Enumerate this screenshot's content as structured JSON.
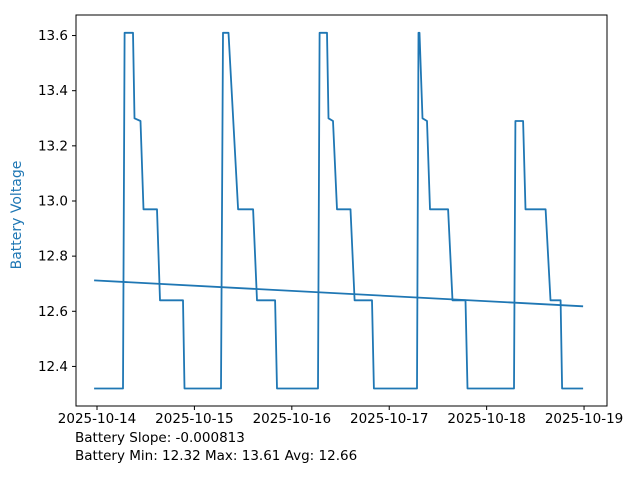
{
  "figure": {
    "background": "#ffffff"
  },
  "footer": {
    "line1": "Battery Slope: -0.000813",
    "line2": "Battery Min: 12.32 Max: 13.61 Avg: 12.66"
  },
  "chart_data": {
    "type": "line",
    "title": "",
    "xlabel": "",
    "ylabel": "Battery Voltage",
    "ylabel_color": "#1f77b4",
    "line_color": "#1f77b4",
    "axis_color": "#000000",
    "grid": false,
    "legend": "none",
    "x_unit": "days since 2025-10-14",
    "xlim": [
      -0.2156,
      5.2356
    ],
    "ylim": [
      12.2565,
      13.6745
    ],
    "x_ticks": [
      {
        "t": 0,
        "label": "2025-10-14"
      },
      {
        "t": 1,
        "label": "2025-10-15"
      },
      {
        "t": 2,
        "label": "2025-10-16"
      },
      {
        "t": 3,
        "label": "2025-10-17"
      },
      {
        "t": 4,
        "label": "2025-10-18"
      },
      {
        "t": 5,
        "label": "2025-10-19"
      }
    ],
    "y_ticks": [
      {
        "v": 12.4,
        "label": "12.4"
      },
      {
        "v": 12.6,
        "label": "12.6"
      },
      {
        "v": 12.8,
        "label": "12.8"
      },
      {
        "v": 13.0,
        "label": "13.0"
      },
      {
        "v": 13.2,
        "label": "13.2"
      },
      {
        "v": 13.4,
        "label": "13.4"
      },
      {
        "v": 13.6,
        "label": "13.6"
      }
    ],
    "stats": {
      "slope": -0.000813,
      "min": 12.32,
      "max": 13.61,
      "avg": 12.66
    },
    "series": [
      {
        "name": "battery-voltage",
        "points": [
          [
            -0.03,
            12.32
          ],
          [
            0.267,
            12.32
          ],
          [
            0.283,
            13.61
          ],
          [
            0.37,
            13.61
          ],
          [
            0.385,
            13.3
          ],
          [
            0.447,
            13.29
          ],
          [
            0.477,
            12.97
          ],
          [
            0.616,
            12.97
          ],
          [
            0.647,
            12.64
          ],
          [
            0.883,
            12.64
          ],
          [
            0.898,
            12.32
          ],
          [
            1.273,
            12.32
          ],
          [
            1.294,
            13.61
          ],
          [
            1.35,
            13.61
          ],
          [
            1.448,
            12.97
          ],
          [
            1.602,
            12.97
          ],
          [
            1.643,
            12.64
          ],
          [
            1.828,
            12.64
          ],
          [
            1.848,
            12.32
          ],
          [
            2.269,
            12.32
          ],
          [
            2.285,
            13.61
          ],
          [
            2.361,
            13.61
          ],
          [
            2.377,
            13.3
          ],
          [
            2.423,
            13.29
          ],
          [
            2.464,
            12.97
          ],
          [
            2.602,
            12.97
          ],
          [
            2.644,
            12.64
          ],
          [
            2.823,
            12.64
          ],
          [
            2.843,
            12.32
          ],
          [
            3.285,
            12.32
          ],
          [
            3.3,
            13.61
          ],
          [
            3.311,
            13.61
          ],
          [
            3.342,
            13.3
          ],
          [
            3.388,
            13.29
          ],
          [
            3.419,
            12.97
          ],
          [
            3.604,
            12.97
          ],
          [
            3.65,
            12.64
          ],
          [
            3.783,
            12.64
          ],
          [
            3.803,
            12.32
          ],
          [
            4.281,
            12.32
          ],
          [
            4.295,
            13.29
          ],
          [
            4.374,
            13.29
          ],
          [
            4.399,
            12.97
          ],
          [
            4.605,
            12.97
          ],
          [
            4.656,
            12.64
          ],
          [
            4.759,
            12.64
          ],
          [
            4.775,
            12.32
          ],
          [
            4.99,
            12.32
          ]
        ]
      },
      {
        "name": "trend",
        "points": [
          [
            -0.03,
            12.712
          ],
          [
            4.99,
            12.618
          ]
        ]
      }
    ]
  }
}
